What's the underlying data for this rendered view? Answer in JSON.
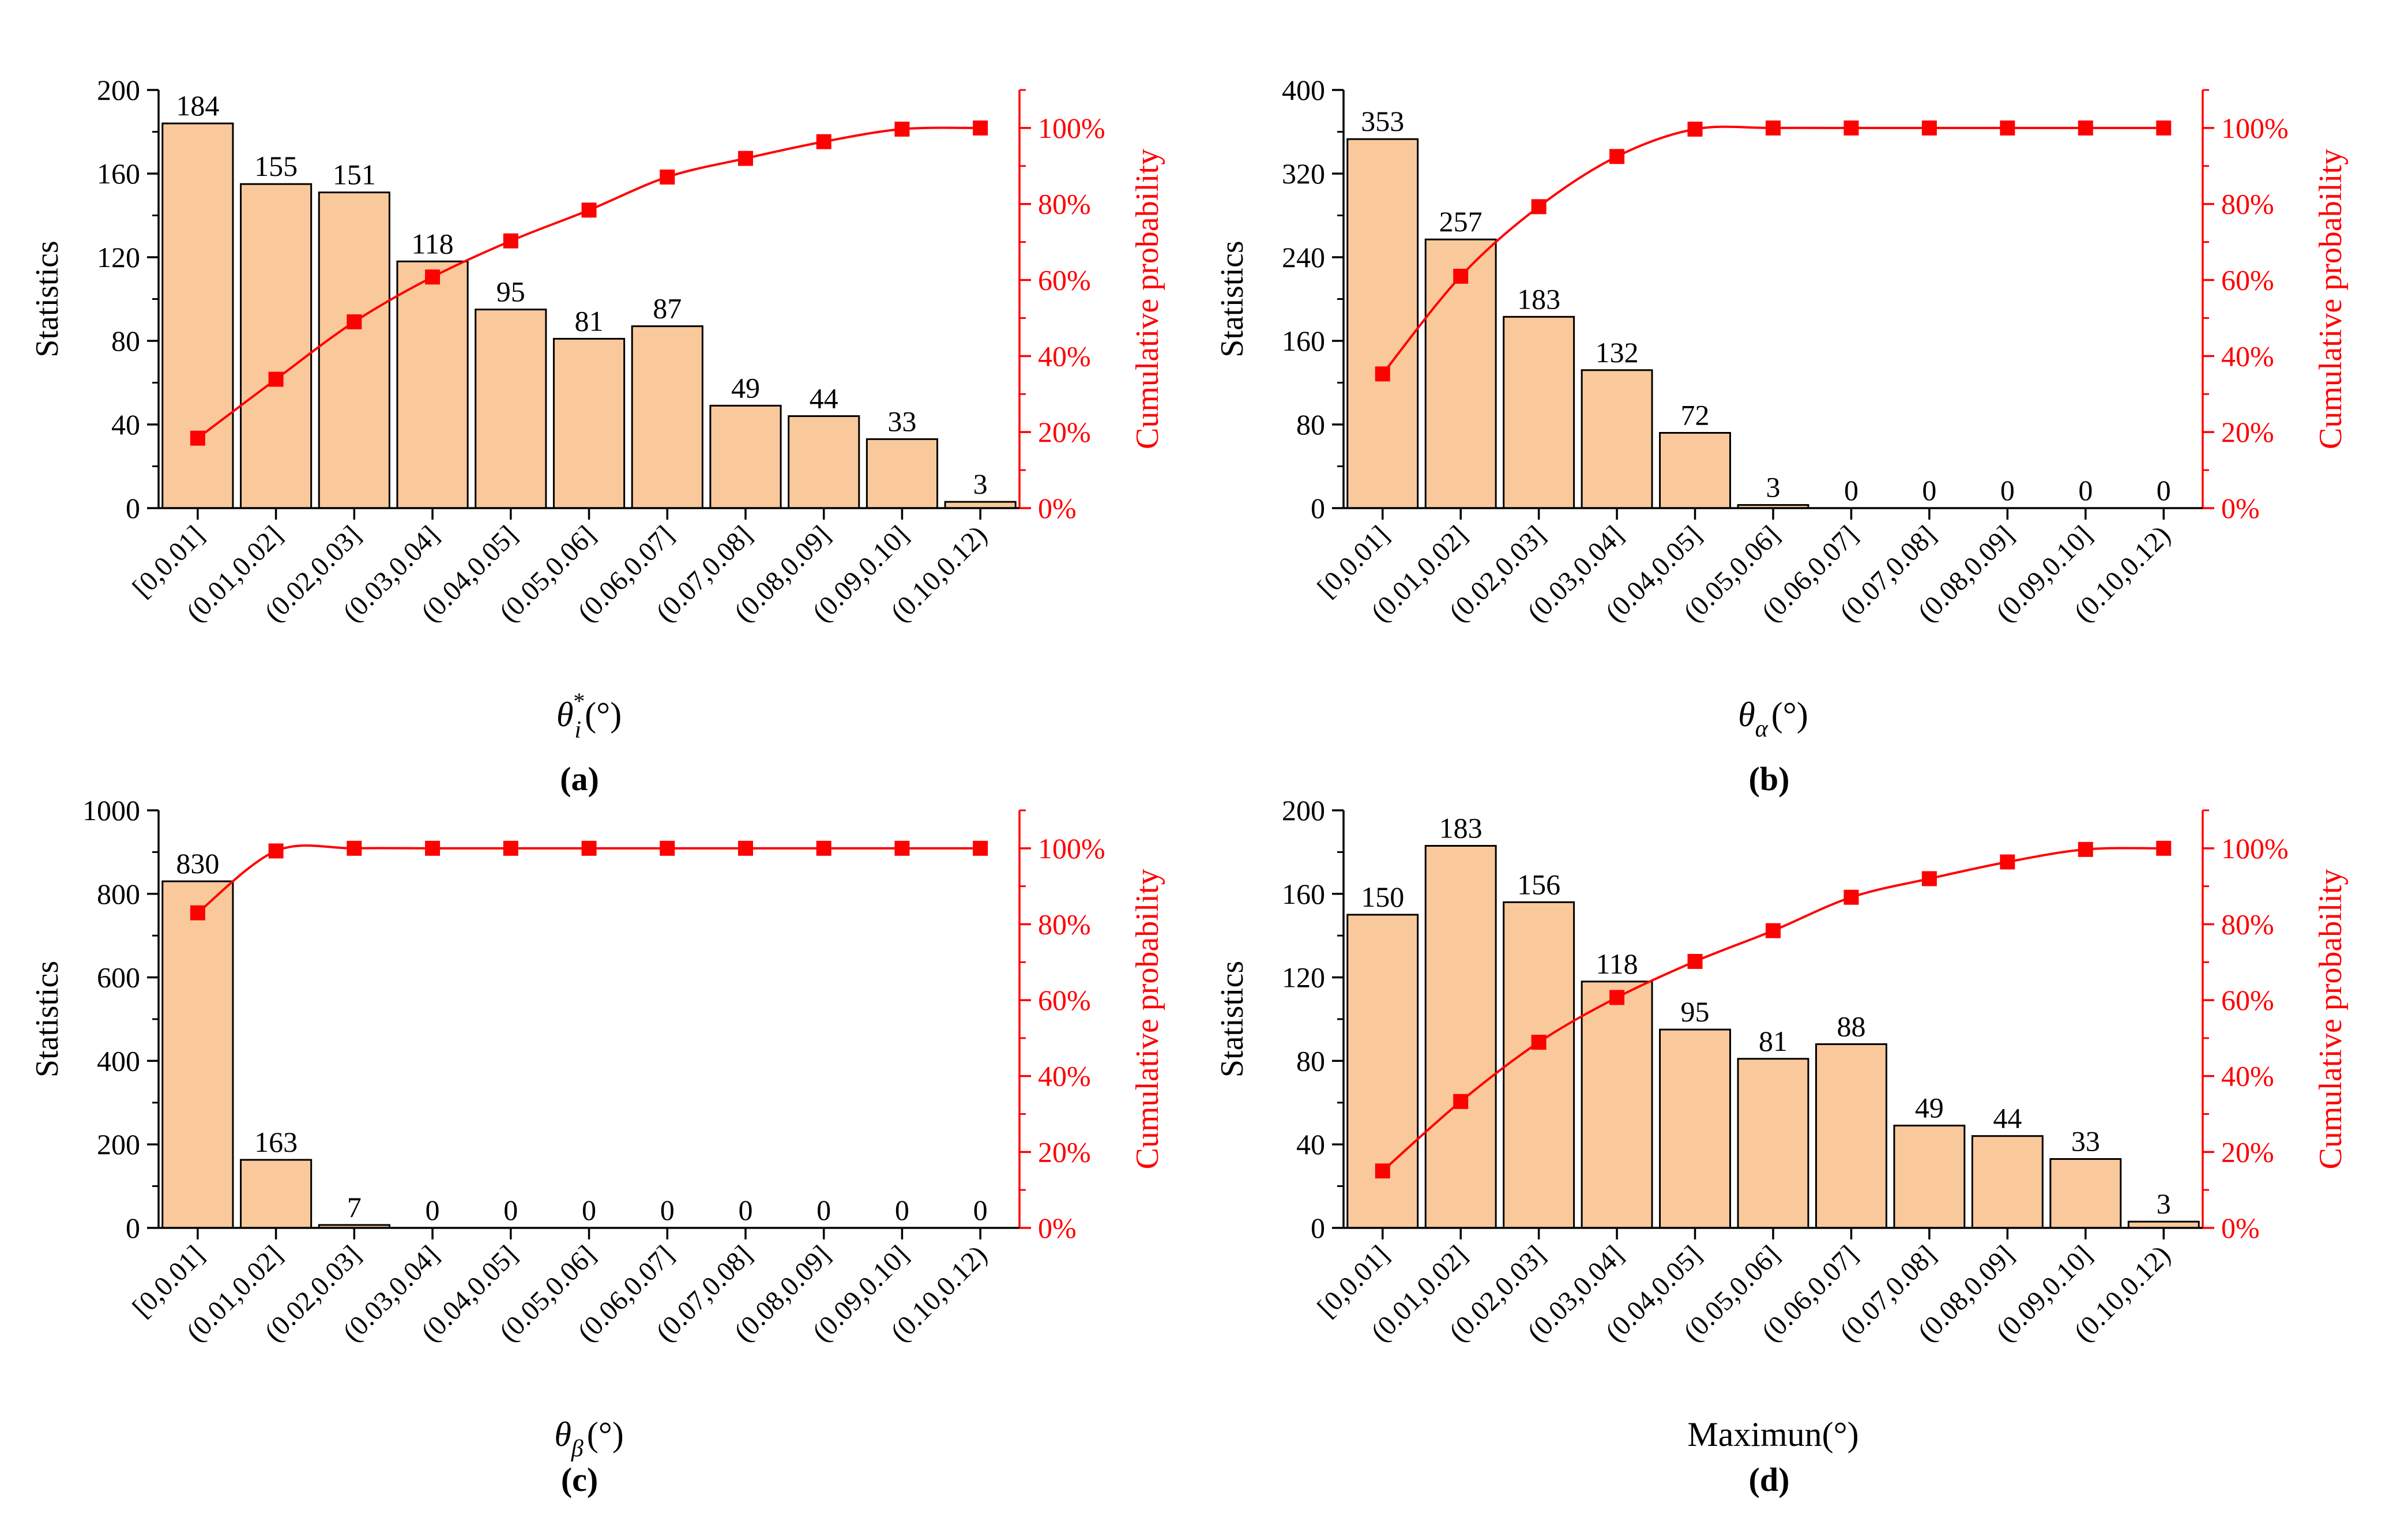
{
  "figure_labels": [
    "(a)",
    "(b)",
    "(c)",
    "(d)"
  ],
  "chart_data": [
    {
      "type": "bar",
      "panel_label": "(a)",
      "categories": [
        "[0,0.01]",
        "(0.01,0.02]",
        "(0.02,0.03]",
        "(0.03,0.04]",
        "(0.04,0.05]",
        "(0.05,0.06]",
        "(0.06,0.07]",
        "(0.07,0.08]",
        "(0.08,0.09]",
        "(0.09,0.10]",
        "(0.10,0.12)"
      ],
      "series": [
        {
          "name": "Statistics",
          "axis": "left",
          "values": [
            184,
            155,
            151,
            118,
            95,
            81,
            87,
            49,
            44,
            33,
            3
          ]
        },
        {
          "name": "Cumulative probability",
          "axis": "right",
          "type": "line",
          "values": [
            18.4,
            33.9,
            49.0,
            60.8,
            70.3,
            78.4,
            87.1,
            92.0,
            96.4,
            99.7,
            100.0
          ]
        }
      ],
      "xlabel": "θi* (°)",
      "xlabel_parts": {
        "main": "θ",
        "sub": "i",
        "sup": "*",
        "unit": "(°)"
      },
      "ylabel": "Statistics",
      "y2label": "Cumulative probability",
      "ylim": [
        0,
        200
      ],
      "yticks": [
        0,
        40,
        80,
        120,
        160,
        200
      ],
      "y2lim": [
        0,
        110
      ],
      "y2ticks": [
        0,
        20,
        40,
        60,
        80,
        100
      ],
      "y2ticklabels": [
        "0%",
        "20%",
        "40%",
        "60%",
        "80%",
        "100%"
      ]
    },
    {
      "type": "bar",
      "panel_label": "(b)",
      "categories": [
        "[0,0.01]",
        "(0.01,0.02]",
        "(0.02,0.03]",
        "(0.03,0.04]",
        "(0.04,0.05]",
        "(0.05,0.06]",
        "(0.06,0.07]",
        "(0.07,0.08]",
        "(0.08,0.09]",
        "(0.09,0.10]",
        "(0.10,0.12)"
      ],
      "series": [
        {
          "name": "Statistics",
          "axis": "left",
          "values": [
            353,
            257,
            183,
            132,
            72,
            3,
            0,
            0,
            0,
            0,
            0
          ]
        },
        {
          "name": "Cumulative probability",
          "axis": "right",
          "type": "line",
          "values": [
            35.3,
            61.0,
            79.3,
            92.5,
            99.7,
            100.0,
            100.0,
            100.0,
            100.0,
            100.0,
            100.0
          ]
        }
      ],
      "xlabel": "θα (°)",
      "xlabel_parts": {
        "main": "θ",
        "sub": "α",
        "sup": "",
        "unit": "(°)"
      },
      "ylabel": "Statistics",
      "y2label": "Cumulative probability",
      "ylim": [
        0,
        400
      ],
      "yticks": [
        0,
        80,
        160,
        240,
        320,
        400
      ],
      "y2lim": [
        0,
        110
      ],
      "y2ticks": [
        0,
        20,
        40,
        60,
        80,
        100
      ],
      "y2ticklabels": [
        "0%",
        "20%",
        "40%",
        "60%",
        "80%",
        "100%"
      ]
    },
    {
      "type": "bar",
      "panel_label": "(c)",
      "categories": [
        "[0,0.01]",
        "(0.01,0.02]",
        "(0.02,0.03]",
        "(0.03,0.04]",
        "(0.04,0.05]",
        "(0.05,0.06]",
        "(0.06,0.07]",
        "(0.07,0.08]",
        "(0.08,0.09]",
        "(0.09,0.10]",
        "(0.10,0.12)"
      ],
      "series": [
        {
          "name": "Statistics",
          "axis": "left",
          "values": [
            830,
            163,
            7,
            0,
            0,
            0,
            0,
            0,
            0,
            0,
            0
          ]
        },
        {
          "name": "Cumulative probability",
          "axis": "right",
          "type": "line",
          "values": [
            83.0,
            99.3,
            100.0,
            100.0,
            100.0,
            100.0,
            100.0,
            100.0,
            100.0,
            100.0,
            100.0
          ]
        }
      ],
      "xlabel": "θβ (°)",
      "xlabel_parts": {
        "main": "θ",
        "sub": "β",
        "sup": "",
        "unit": "(°)"
      },
      "ylabel": "Statistics",
      "y2label": "Cumulative probability",
      "ylim": [
        0,
        1000
      ],
      "yticks": [
        0,
        200,
        400,
        600,
        800,
        1000
      ],
      "y2lim": [
        0,
        110
      ],
      "y2ticks": [
        0,
        20,
        40,
        60,
        80,
        100
      ],
      "y2ticklabels": [
        "0%",
        "20%",
        "40%",
        "60%",
        "80%",
        "100%"
      ]
    },
    {
      "type": "bar",
      "panel_label": "(d)",
      "categories": [
        "[0,0.01]",
        "(0.01,0.02]",
        "(0.02,0.03]",
        "(0.03,0.04]",
        "(0.04,0.05]",
        "(0.05,0.06]",
        "(0.06,0.07]",
        "(0.07,0.08]",
        "(0.08,0.09]",
        "(0.09,0.10]",
        "(0.10,0.12)"
      ],
      "series": [
        {
          "name": "Statistics",
          "axis": "left",
          "values": [
            150,
            183,
            156,
            118,
            95,
            81,
            88,
            49,
            44,
            33,
            3
          ]
        },
        {
          "name": "Cumulative probability",
          "axis": "right",
          "type": "line",
          "values": [
            15.0,
            33.3,
            48.9,
            60.7,
            70.2,
            78.3,
            87.1,
            92.0,
            96.4,
            99.7,
            100.0
          ]
        }
      ],
      "xlabel": "Maximun(°)",
      "xlabel_parts": {
        "main": "Maximun(°)",
        "sub": "",
        "sup": "",
        "unit": ""
      },
      "ylabel": "Statistics",
      "y2label": "Cumulative probability",
      "ylim": [
        0,
        200
      ],
      "yticks": [
        0,
        40,
        80,
        120,
        160,
        200
      ],
      "y2lim": [
        0,
        110
      ],
      "y2ticks": [
        0,
        20,
        40,
        60,
        80,
        100
      ],
      "y2ticklabels": [
        "0%",
        "20%",
        "40%",
        "60%",
        "80%",
        "100%"
      ]
    }
  ],
  "colors": {
    "bar_fill": "#f9c99b",
    "bar_stroke": "#000000",
    "line": "#ff0000",
    "axis": "#000000"
  }
}
